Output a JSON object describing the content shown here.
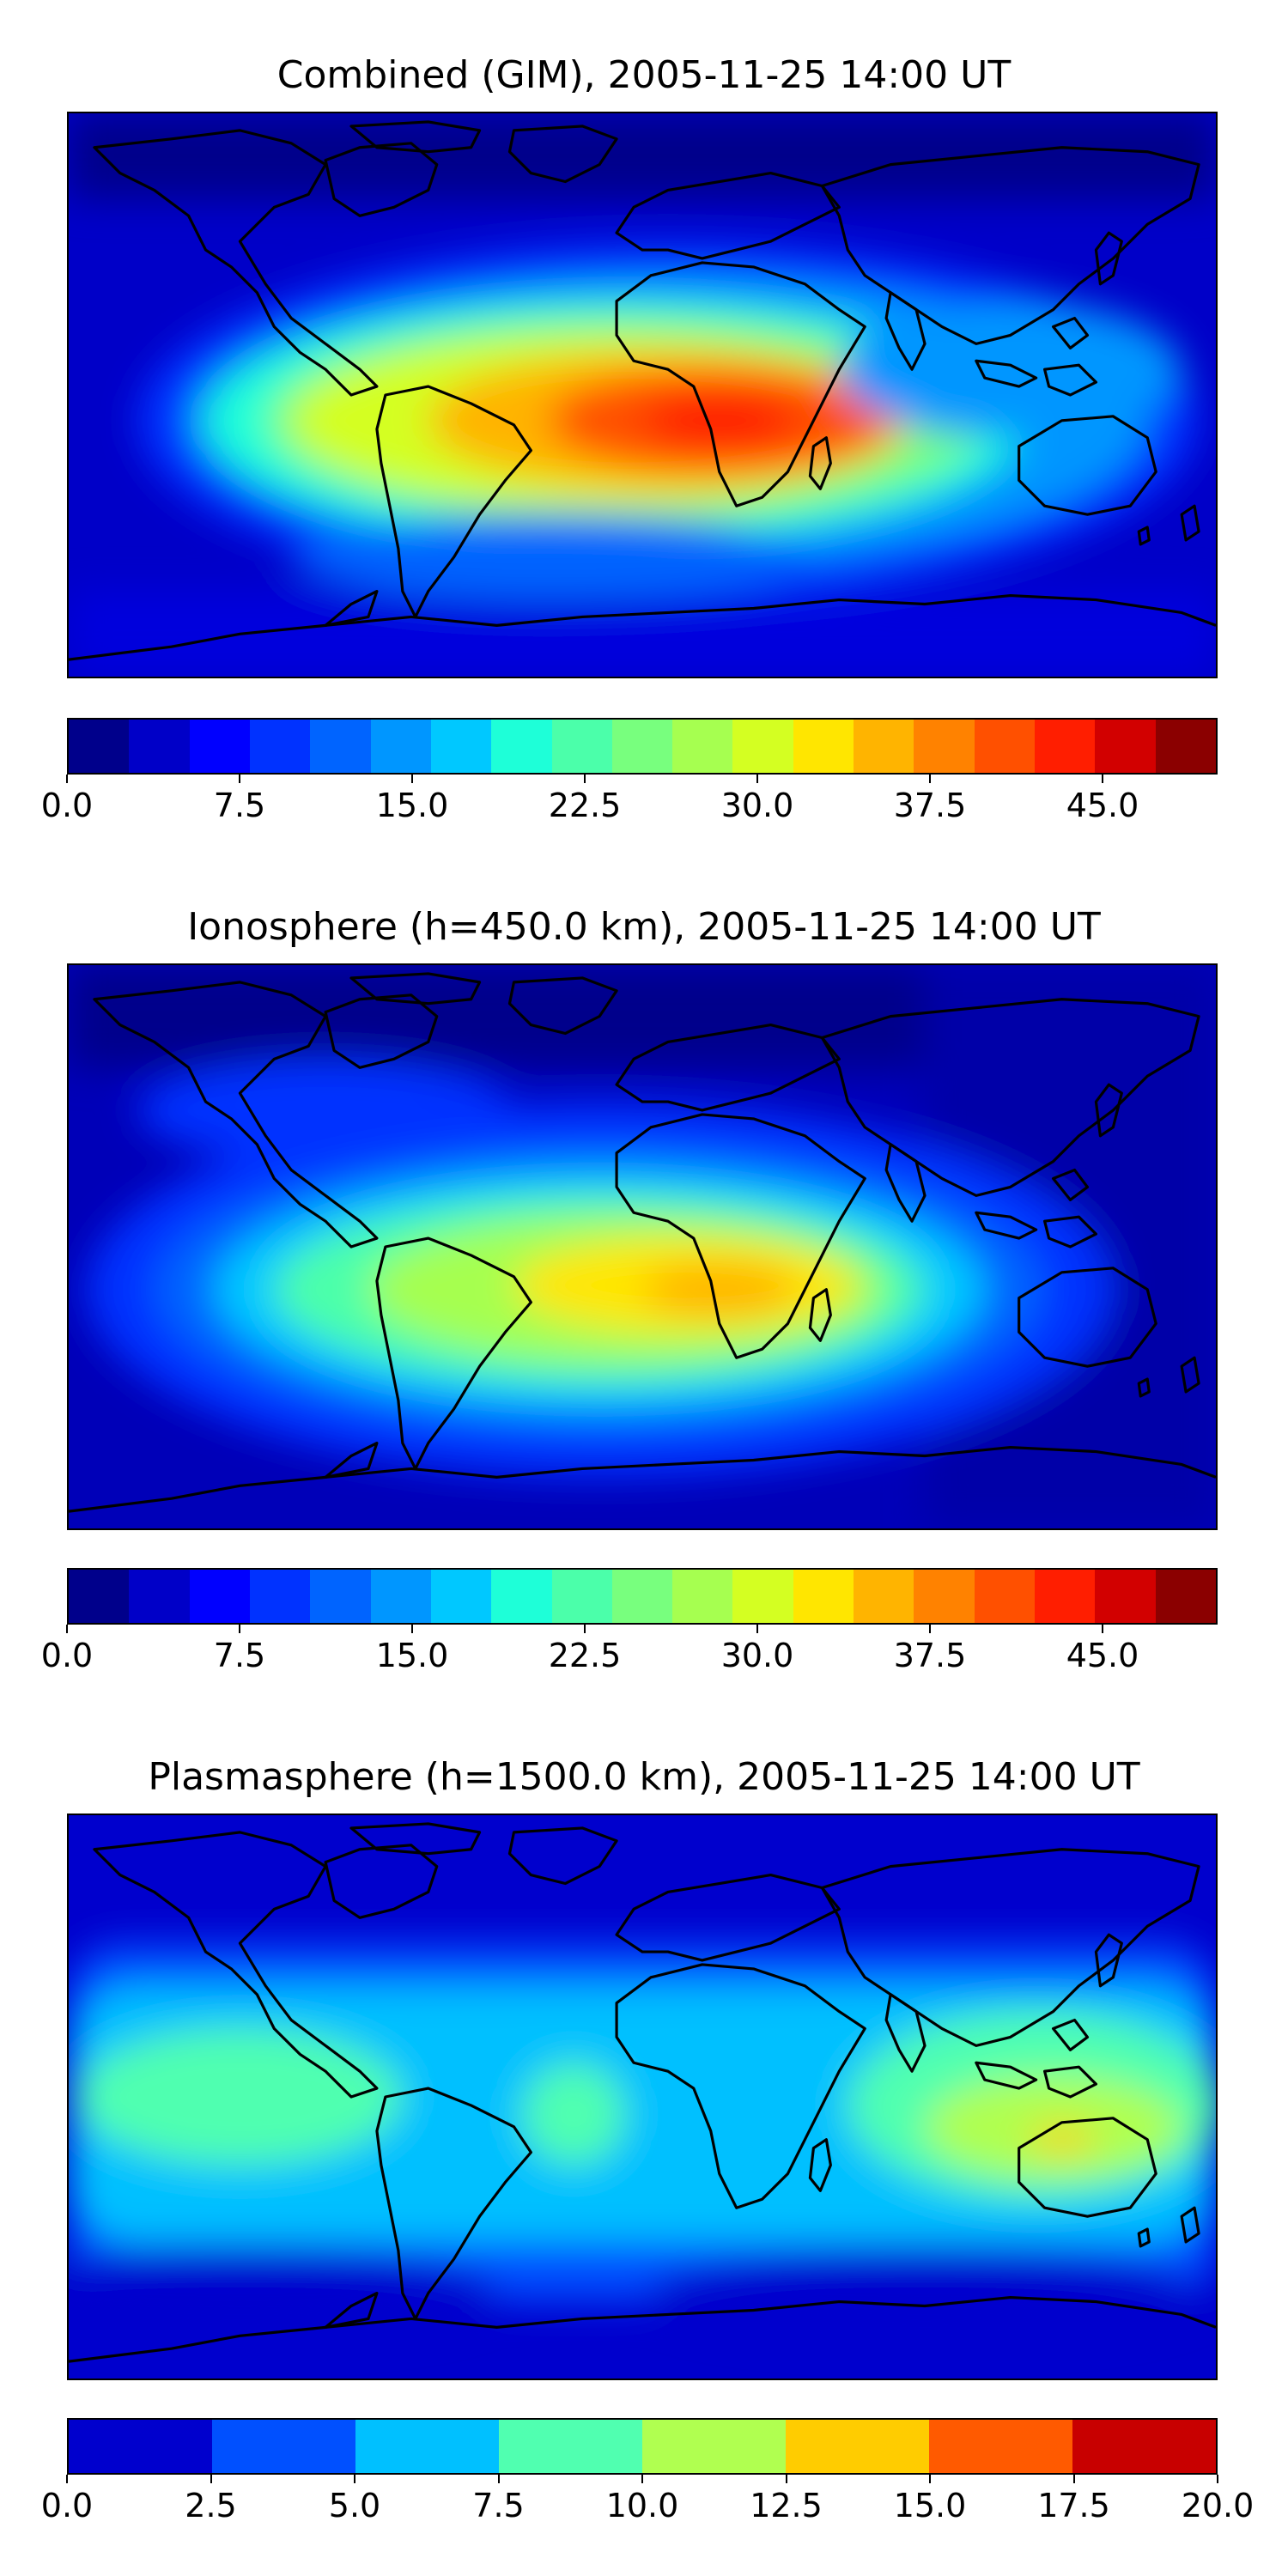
{
  "panels": [
    {
      "title": "Combined (GIM), 2005-11-25 14:00 UT",
      "colorbar": {
        "colors": [
          "#00008b",
          "#0000c8",
          "#0000ff",
          "#0032ff",
          "#0064ff",
          "#0096ff",
          "#00c8ff",
          "#1effd8",
          "#4bffaa",
          "#78ff7e",
          "#a6ff50",
          "#d4ff22",
          "#ffe600",
          "#ffb400",
          "#ff8200",
          "#ff5000",
          "#ff1e00",
          "#d20000",
          "#8b0000"
        ],
        "ticks": [
          "0.0",
          "7.5",
          "15.0",
          "22.5",
          "30.0",
          "37.5",
          "45.0"
        ],
        "tick_values": [
          0,
          7.5,
          15,
          22.5,
          30,
          37.5,
          45
        ],
        "range": [
          0,
          50
        ]
      }
    },
    {
      "title": "Ionosphere  (h=450.0 km), 2005-11-25 14:00 UT",
      "colorbar": {
        "colors": [
          "#00008b",
          "#0000c8",
          "#0000ff",
          "#0032ff",
          "#0064ff",
          "#0096ff",
          "#00c8ff",
          "#1effd8",
          "#4bffaa",
          "#78ff7e",
          "#a6ff50",
          "#d4ff22",
          "#ffe600",
          "#ffb400",
          "#ff8200",
          "#ff5000",
          "#ff1e00",
          "#d20000",
          "#8b0000"
        ],
        "ticks": [
          "0.0",
          "7.5",
          "15.0",
          "22.5",
          "30.0",
          "37.5",
          "45.0"
        ],
        "tick_values": [
          0,
          7.5,
          15,
          22.5,
          30,
          37.5,
          45
        ],
        "range": [
          0,
          50
        ]
      }
    },
    {
      "title": "Plasmasphere (h=1500.0 km), 2005-11-25 14:00 UT",
      "colorbar": {
        "colors": [
          "#0000cd",
          "#0050ff",
          "#00c0ff",
          "#50ffb0",
          "#b0ff50",
          "#ffcc00",
          "#ff5a00",
          "#c80000"
        ],
        "ticks": [
          "0.0",
          "2.5",
          "5.0",
          "7.5",
          "10.0",
          "12.5",
          "15.0",
          "17.5",
          "20.0"
        ],
        "tick_values": [
          0,
          2.5,
          5,
          7.5,
          10,
          12.5,
          15,
          17.5,
          20
        ],
        "range": [
          0,
          20
        ]
      }
    }
  ]
}
